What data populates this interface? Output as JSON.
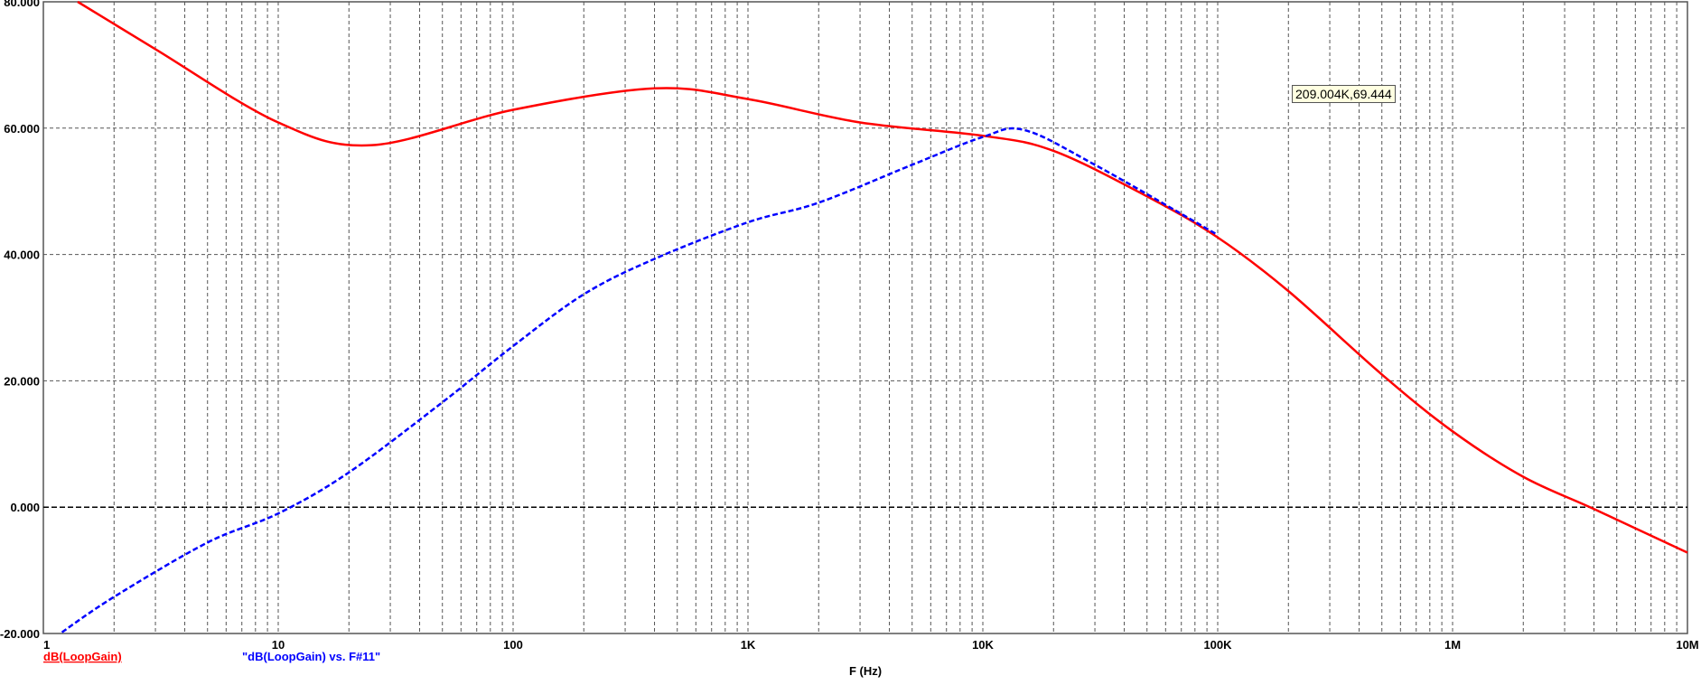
{
  "chart_data": {
    "type": "line",
    "xlabel": "F (Hz)",
    "xscale": "log",
    "xlim": [
      1,
      10000000
    ],
    "ylim": [
      -20,
      80
    ],
    "grid": true,
    "x_ticks": [
      {
        "v": 1,
        "label": "1"
      },
      {
        "v": 10,
        "label": "10"
      },
      {
        "v": 100,
        "label": "100"
      },
      {
        "v": 1000,
        "label": "1K"
      },
      {
        "v": 10000,
        "label": "10K"
      },
      {
        "v": 100000,
        "label": "100K"
      },
      {
        "v": 1000000,
        "label": "1M"
      },
      {
        "v": 10000000,
        "label": "10M"
      }
    ],
    "y_ticks": [
      {
        "v": 80,
        "label": "80.000"
      },
      {
        "v": 60,
        "label": "60.000"
      },
      {
        "v": 40,
        "label": "40.000"
      },
      {
        "v": 20,
        "label": "20.000"
      },
      {
        "v": 0,
        "label": "0.000"
      },
      {
        "v": -20,
        "label": "-20.000"
      }
    ],
    "series": [
      {
        "name": "dB(LoopGain)",
        "color": "#ff0000",
        "style": "solid",
        "x": [
          1.4,
          3,
          10,
          25,
          100,
          400,
          1000,
          3000,
          10000,
          20000,
          50000,
          100000,
          200000,
          500000,
          1000000,
          2000000,
          4000000,
          10000000
        ],
        "y": [
          80,
          72.5,
          60.9,
          57.3,
          62.9,
          66.3,
          64.6,
          60.9,
          58.8,
          56.4,
          49.2,
          42.7,
          34.2,
          21,
          12,
          4.8,
          -0.3,
          -7.2
        ]
      },
      {
        "name": "\"dB(LoopGain) vs. F#11\"",
        "color": "#0000ff",
        "style": "dashed",
        "x": [
          1.2,
          2,
          5,
          10,
          20,
          50,
          100,
          200,
          400,
          1000,
          2000,
          5000,
          10000,
          15000,
          30000,
          100000
        ],
        "y": [
          -19.8,
          -14.2,
          -5.6,
          -1,
          5.5,
          16.6,
          25.5,
          33.7,
          39.3,
          45.1,
          48.2,
          54.2,
          58.6,
          59.7,
          54.2,
          43.1
        ]
      }
    ],
    "reference_line": {
      "y": 0,
      "color": "#000000",
      "style": "dashed"
    },
    "annotation": "209.004K,69.444"
  }
}
